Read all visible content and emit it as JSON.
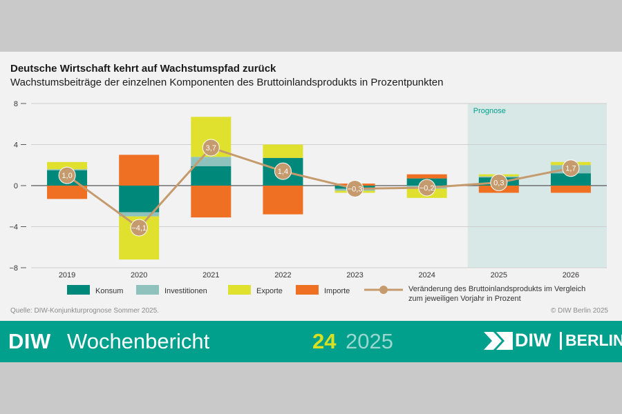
{
  "chart_data": {
    "type": "bar",
    "stacked": true,
    "title": "Deutsche Wirtschaft kehrt auf Wachstumspfad zurück",
    "subtitle": "Wachstumsbeiträge der einzelnen Komponenten des Bruttoinlandsprodukts in Prozentpunkten",
    "categories": [
      "2019",
      "2020",
      "2021",
      "2022",
      "2023",
      "2024",
      "2025",
      "2026"
    ],
    "ylim": [
      -8,
      8
    ],
    "yticks": [
      8,
      4,
      0,
      -4,
      -8
    ],
    "ytick_labels": [
      "8",
      "4",
      "0",
      "−4",
      "−8"
    ],
    "grid": true,
    "forecast_label": "Prognose",
    "forecast_from": "2025",
    "series": [
      {
        "name": "Konsum",
        "color": "#00897b",
        "values": [
          1.5,
          -2.6,
          1.9,
          2.7,
          -0.3,
          0.7,
          0.8,
          1.2
        ]
      },
      {
        "name": "Investitionen",
        "color": "#8fc1bd",
        "values": [
          0.1,
          -0.4,
          0.9,
          0.0,
          -0.2,
          -0.3,
          0.1,
          0.8
        ]
      },
      {
        "name": "Exporte",
        "color": "#e0e12e",
        "values": [
          0.7,
          -4.2,
          3.9,
          1.3,
          -0.2,
          -0.9,
          0.2,
          0.3
        ]
      },
      {
        "name": "Importe",
        "color": "#f07023",
        "values": [
          -1.3,
          3.0,
          -3.1,
          -2.8,
          0.2,
          0.4,
          -0.7,
          -0.7
        ]
      }
    ],
    "line": {
      "name": "Veränderung des Bruttoinlandsprodukts im Vergleich zum jeweiligen Vorjahr in Prozent",
      "name_line1": "Veränderung des Bruttoinlandsprodukts im Vergleich",
      "name_line2": "zum jeweiligen Vorjahr in Prozent",
      "color": "#c59a6d",
      "values": [
        1.0,
        -4.1,
        3.7,
        1.4,
        -0.3,
        -0.2,
        0.3,
        1.7
      ],
      "labels": [
        "1,0",
        "−4,1",
        "3,7",
        "1,4",
        "−0,3",
        "−0,2",
        "0,3",
        "1,7"
      ]
    },
    "legend_position": "bottom"
  },
  "source": "Quelle: DIW-Konjunkturprognose Sommer 2025.",
  "copyright": "© DIW Berlin 2025",
  "footer": {
    "brand": "DIW",
    "publication": "Wochenbericht",
    "issue": "24",
    "year": "2025",
    "logo_left": "DIW",
    "logo_right": "BERLIN"
  },
  "colors": {
    "footer_bg": "#00a08c",
    "forecast_bg": "#d8e8e6",
    "accent": "#d9e021"
  }
}
